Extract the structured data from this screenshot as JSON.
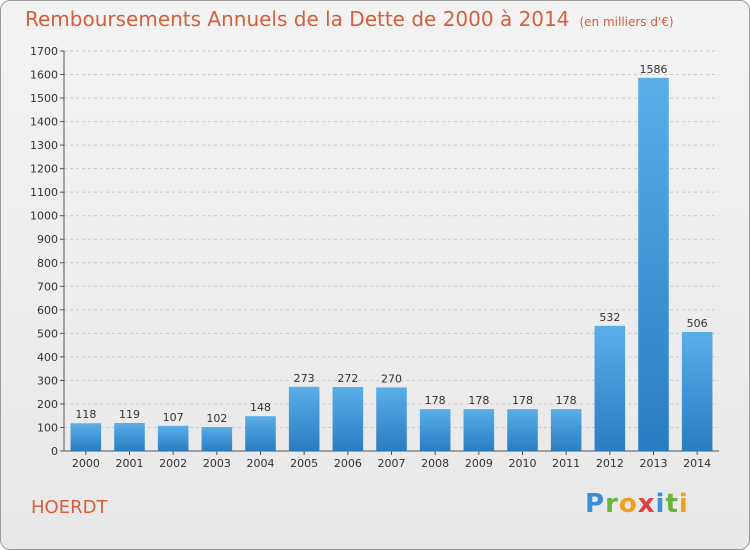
{
  "chart_data": {
    "type": "bar",
    "title": "Remboursements Annuels de la Dette de 2000 à 2014",
    "subtitle": "(en milliers d'€)",
    "categories": [
      "2000",
      "2001",
      "2002",
      "2003",
      "2004",
      "2005",
      "2006",
      "2007",
      "2008",
      "2009",
      "2010",
      "2011",
      "2012",
      "2013",
      "2014"
    ],
    "values": [
      118,
      119,
      107,
      102,
      148,
      273,
      272,
      270,
      178,
      178,
      178,
      178,
      532,
      1586,
      506
    ],
    "ylim": [
      0,
      1700
    ],
    "yticks": [
      0,
      100,
      200,
      300,
      400,
      500,
      600,
      700,
      800,
      900,
      1000,
      1100,
      1200,
      1300,
      1400,
      1500,
      1600,
      1700
    ],
    "grid": "horizontal dashed",
    "bar_color": "#4a9fe0",
    "xlabel": "",
    "ylabel": ""
  },
  "place_name": "HOERDT",
  "logo": {
    "letters": [
      "P",
      "r",
      "o",
      "x",
      "i",
      "t",
      "i"
    ],
    "colors": [
      "#3a8fd6",
      "#6ab33c",
      "#f0a020",
      "#e04040",
      "#3a8fd6",
      "#6ab33c",
      "#f0a020"
    ]
  },
  "colors": {
    "title": "#d35f3c",
    "bar": "#4a9fe0"
  }
}
